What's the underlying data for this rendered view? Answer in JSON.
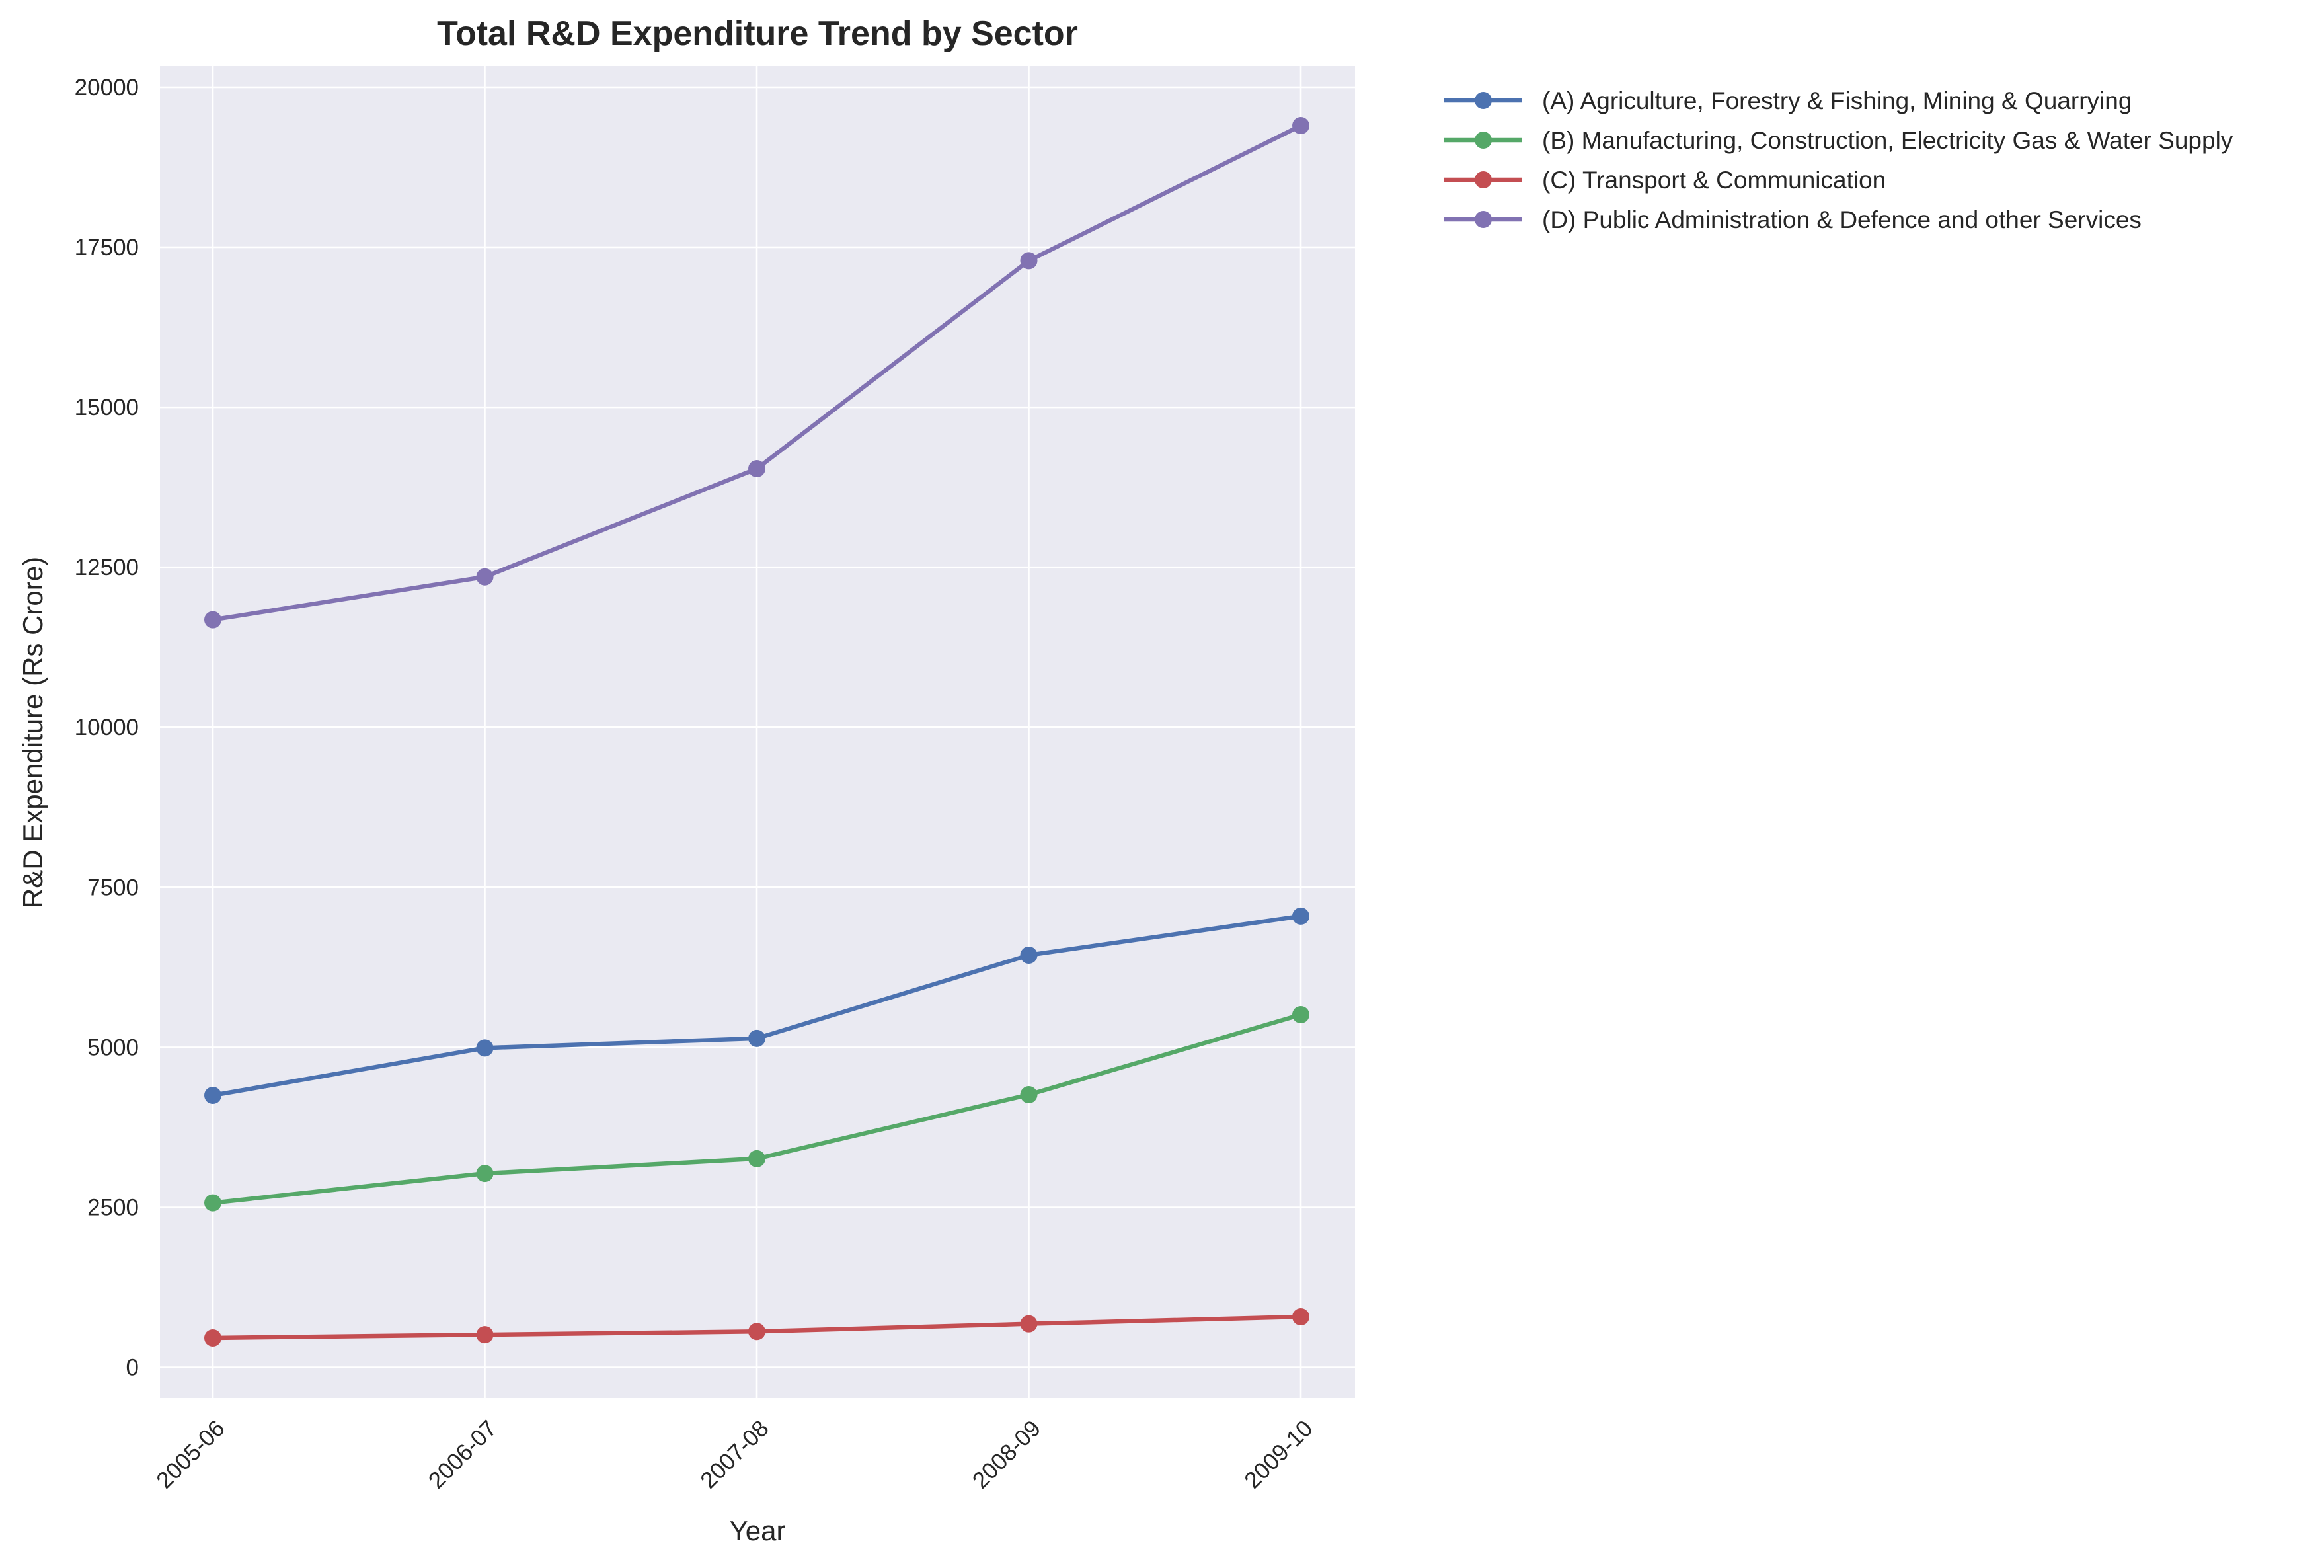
{
  "chart_data": {
    "type": "line",
    "title": "Total R&D Expenditure Trend by Sector",
    "xlabel": "Year",
    "ylabel": "R&D Expenditure (Rs Crore)",
    "categories": [
      "2005-06",
      "2006-07",
      "2007-08",
      "2008-09",
      "2009-10"
    ],
    "ylim": [
      -480,
      20330
    ],
    "yticks": [
      0,
      2500,
      5000,
      7500,
      10000,
      12500,
      15000,
      17500,
      20000
    ],
    "grid": true,
    "legend_position": "outside-top-right",
    "series": [
      {
        "name": "(A) Agriculture, Forestry & Fishing, Mining & Quarrying",
        "color": "#4c72b0",
        "values": [
          4250,
          4990,
          5140,
          6440,
          7050
        ]
      },
      {
        "name": "(B) Manufacturing, Construction, Electricity Gas & Water Supply",
        "color": "#55a868",
        "values": [
          2570,
          3030,
          3260,
          4260,
          5510
        ]
      },
      {
        "name": "(C) Transport & Communication",
        "color": "#c44e52",
        "values": [
          460,
          510,
          560,
          680,
          790
        ]
      },
      {
        "name": "(D) Public Administration & Defence and other Services",
        "color": "#8172b2",
        "values": [
          11680,
          12350,
          14040,
          17290,
          19400
        ]
      }
    ]
  }
}
